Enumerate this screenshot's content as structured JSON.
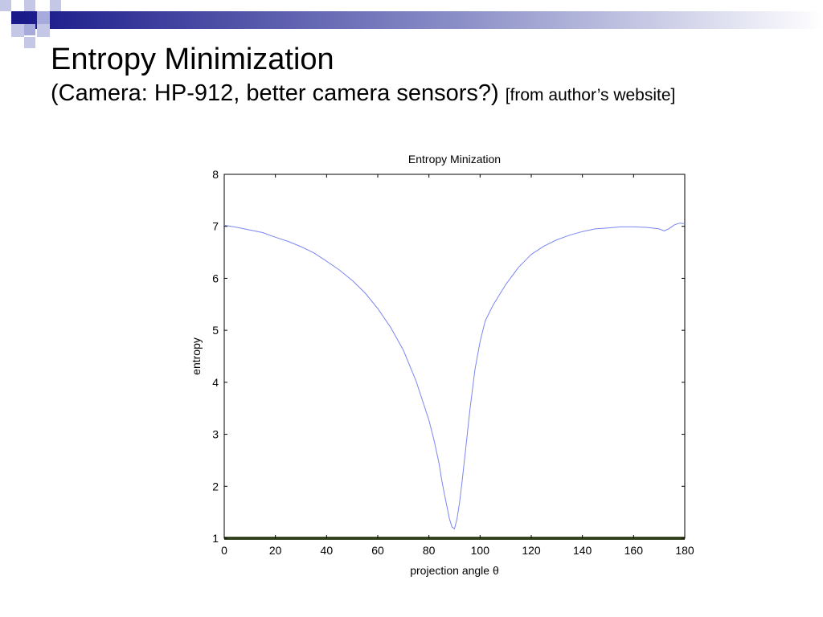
{
  "slide": {
    "title": "Entropy Minimization",
    "subtitle": "(Camera: HP-912, better camera sensors?)",
    "note": "[from author’s website]"
  },
  "colors": {
    "series_line": "#7b86f0",
    "deco_dark": "#1a1a8a",
    "deco_light": "#a7abdb",
    "axis": "#000000"
  },
  "chart_data": {
    "type": "line",
    "title": "Entropy Minization",
    "xlabel": "projection angle θ",
    "ylabel": "entropy",
    "xlim": [
      0,
      180
    ],
    "ylim": [
      1,
      8
    ],
    "xticks": [
      0,
      20,
      40,
      60,
      80,
      100,
      120,
      140,
      160,
      180
    ],
    "yticks": [
      1,
      2,
      3,
      4,
      5,
      6,
      7,
      8
    ],
    "grid": false,
    "series": [
      {
        "x": [
          0,
          5,
          10,
          15,
          20,
          25,
          30,
          35,
          40,
          45,
          50,
          55,
          60,
          65,
          70,
          75,
          80,
          82,
          84,
          85,
          86,
          87,
          88,
          89,
          90,
          91,
          92,
          93,
          94,
          95,
          96,
          98,
          100,
          102,
          105,
          110,
          115,
          120,
          125,
          130,
          135,
          140,
          145,
          150,
          155,
          160,
          165,
          170,
          172,
          174,
          176,
          178,
          180
        ],
        "y": [
          7.02,
          6.98,
          6.93,
          6.88,
          6.79,
          6.71,
          6.61,
          6.49,
          6.33,
          6.16,
          5.96,
          5.72,
          5.42,
          5.06,
          4.62,
          4.02,
          3.27,
          2.89,
          2.43,
          2.12,
          1.86,
          1.62,
          1.38,
          1.22,
          1.18,
          1.38,
          1.7,
          2.1,
          2.55,
          3.0,
          3.46,
          4.25,
          4.78,
          5.18,
          5.48,
          5.88,
          6.21,
          6.46,
          6.62,
          6.74,
          6.83,
          6.9,
          6.95,
          6.97,
          6.99,
          6.99,
          6.98,
          6.95,
          6.91,
          6.96,
          7.03,
          7.06,
          7.05
        ]
      }
    ]
  }
}
